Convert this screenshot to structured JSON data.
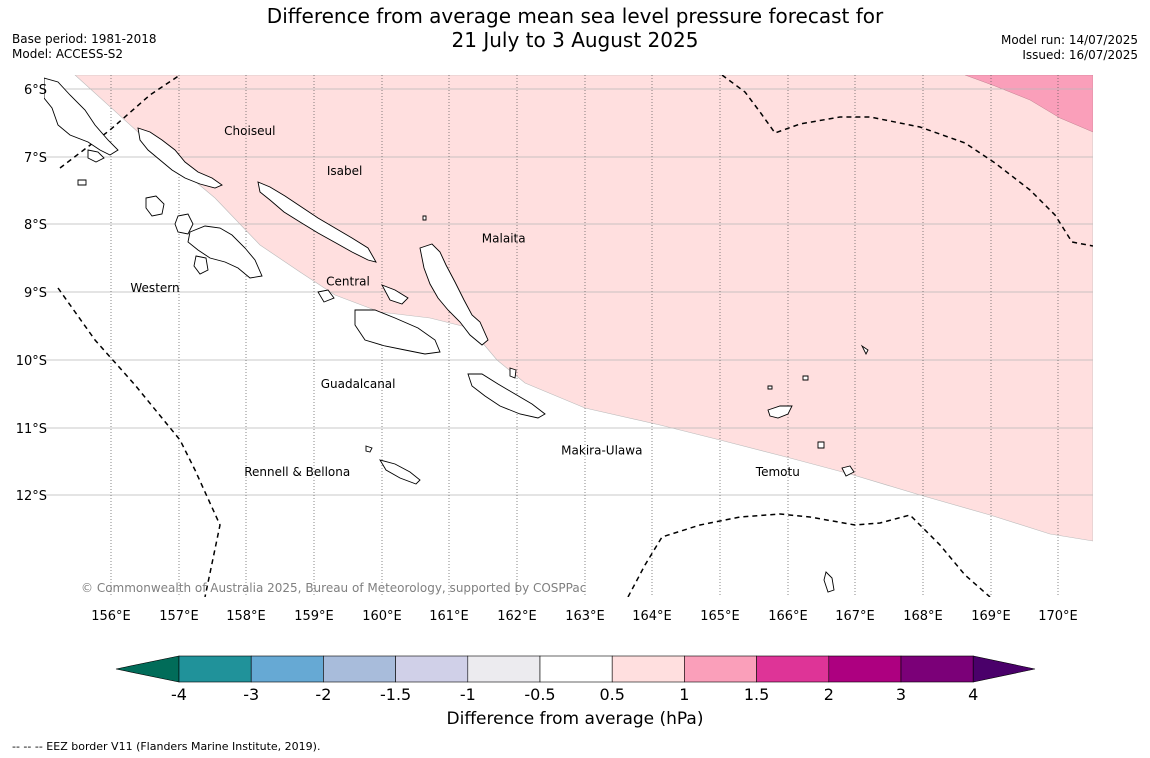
{
  "title": {
    "line1": "Difference from average mean sea level pressure forecast for",
    "line2": "21 July to 3 August 2025"
  },
  "meta_left": {
    "base_period": "Base period: 1981-2018",
    "model": "Model: ACCESS-S2"
  },
  "meta_right": {
    "model_run": "Model run: 14/07/2025",
    "issued": "Issued: 16/07/2025"
  },
  "map": {
    "lon_range": [
      155.0,
      170.5
    ],
    "lat_range": [
      -13.8,
      -5.8
    ],
    "lat_labels": [
      "6°S",
      "7°S",
      "8°S",
      "9°S",
      "10°S",
      "11°S",
      "12°S"
    ],
    "lon_labels": [
      "156°E",
      "157°E",
      "158°E",
      "159°E",
      "160°E",
      "161°E",
      "162°E",
      "163°E",
      "164°E",
      "165°E",
      "166°E",
      "167°E",
      "168°E",
      "169°E",
      "170°E"
    ],
    "places": [
      {
        "name": "Choiseul",
        "lon": 158.05,
        "lat": -6.68
      },
      {
        "name": "Isabel",
        "lon": 159.45,
        "lat": -7.27
      },
      {
        "name": "Malaita",
        "lon": 161.8,
        "lat": -8.27
      },
      {
        "name": "Western",
        "lon": 156.65,
        "lat": -9.0
      },
      {
        "name": "Central",
        "lon": 159.5,
        "lat": -8.9
      },
      {
        "name": "Guadalcanal",
        "lon": 159.65,
        "lat": -10.42
      },
      {
        "name": "Makira-Ulawa",
        "lon": 163.25,
        "lat": -11.4
      },
      {
        "name": "Rennell & Bellona",
        "lon": 158.75,
        "lat": -11.72
      },
      {
        "name": "Temotu",
        "lon": 165.85,
        "lat": -11.72
      }
    ],
    "copyright": "© Commonwealth of Australia 2025, Bureau of Meteorology, supported by COSPPac",
    "fill_colors": {
      "band_0_5_to_1": "#ffdfdf",
      "band_1_to_1_5": "#fa9fba"
    }
  },
  "colorbar": {
    "ticks": [
      "-4",
      "-3",
      "-2",
      "-1.5",
      "-1",
      "-0.5",
      "0.5",
      "1",
      "1.5",
      "2",
      "3",
      "4"
    ],
    "colors": [
      "#20929a",
      "#66a9d4",
      "#a8bcdb",
      "#d0d0e8",
      "#ecebef",
      "#ffffff",
      "#ffdfdf",
      "#fa9fba",
      "#de3497",
      "#ad0080",
      "#7b0078"
    ],
    "low_extend_color": "#016c59",
    "high_extend_color": "#4a006a",
    "label": "Difference from average (hPa)"
  },
  "eez_note": "-- -- -- EEZ border V11 (Flanders Marine Institute, 2019)."
}
